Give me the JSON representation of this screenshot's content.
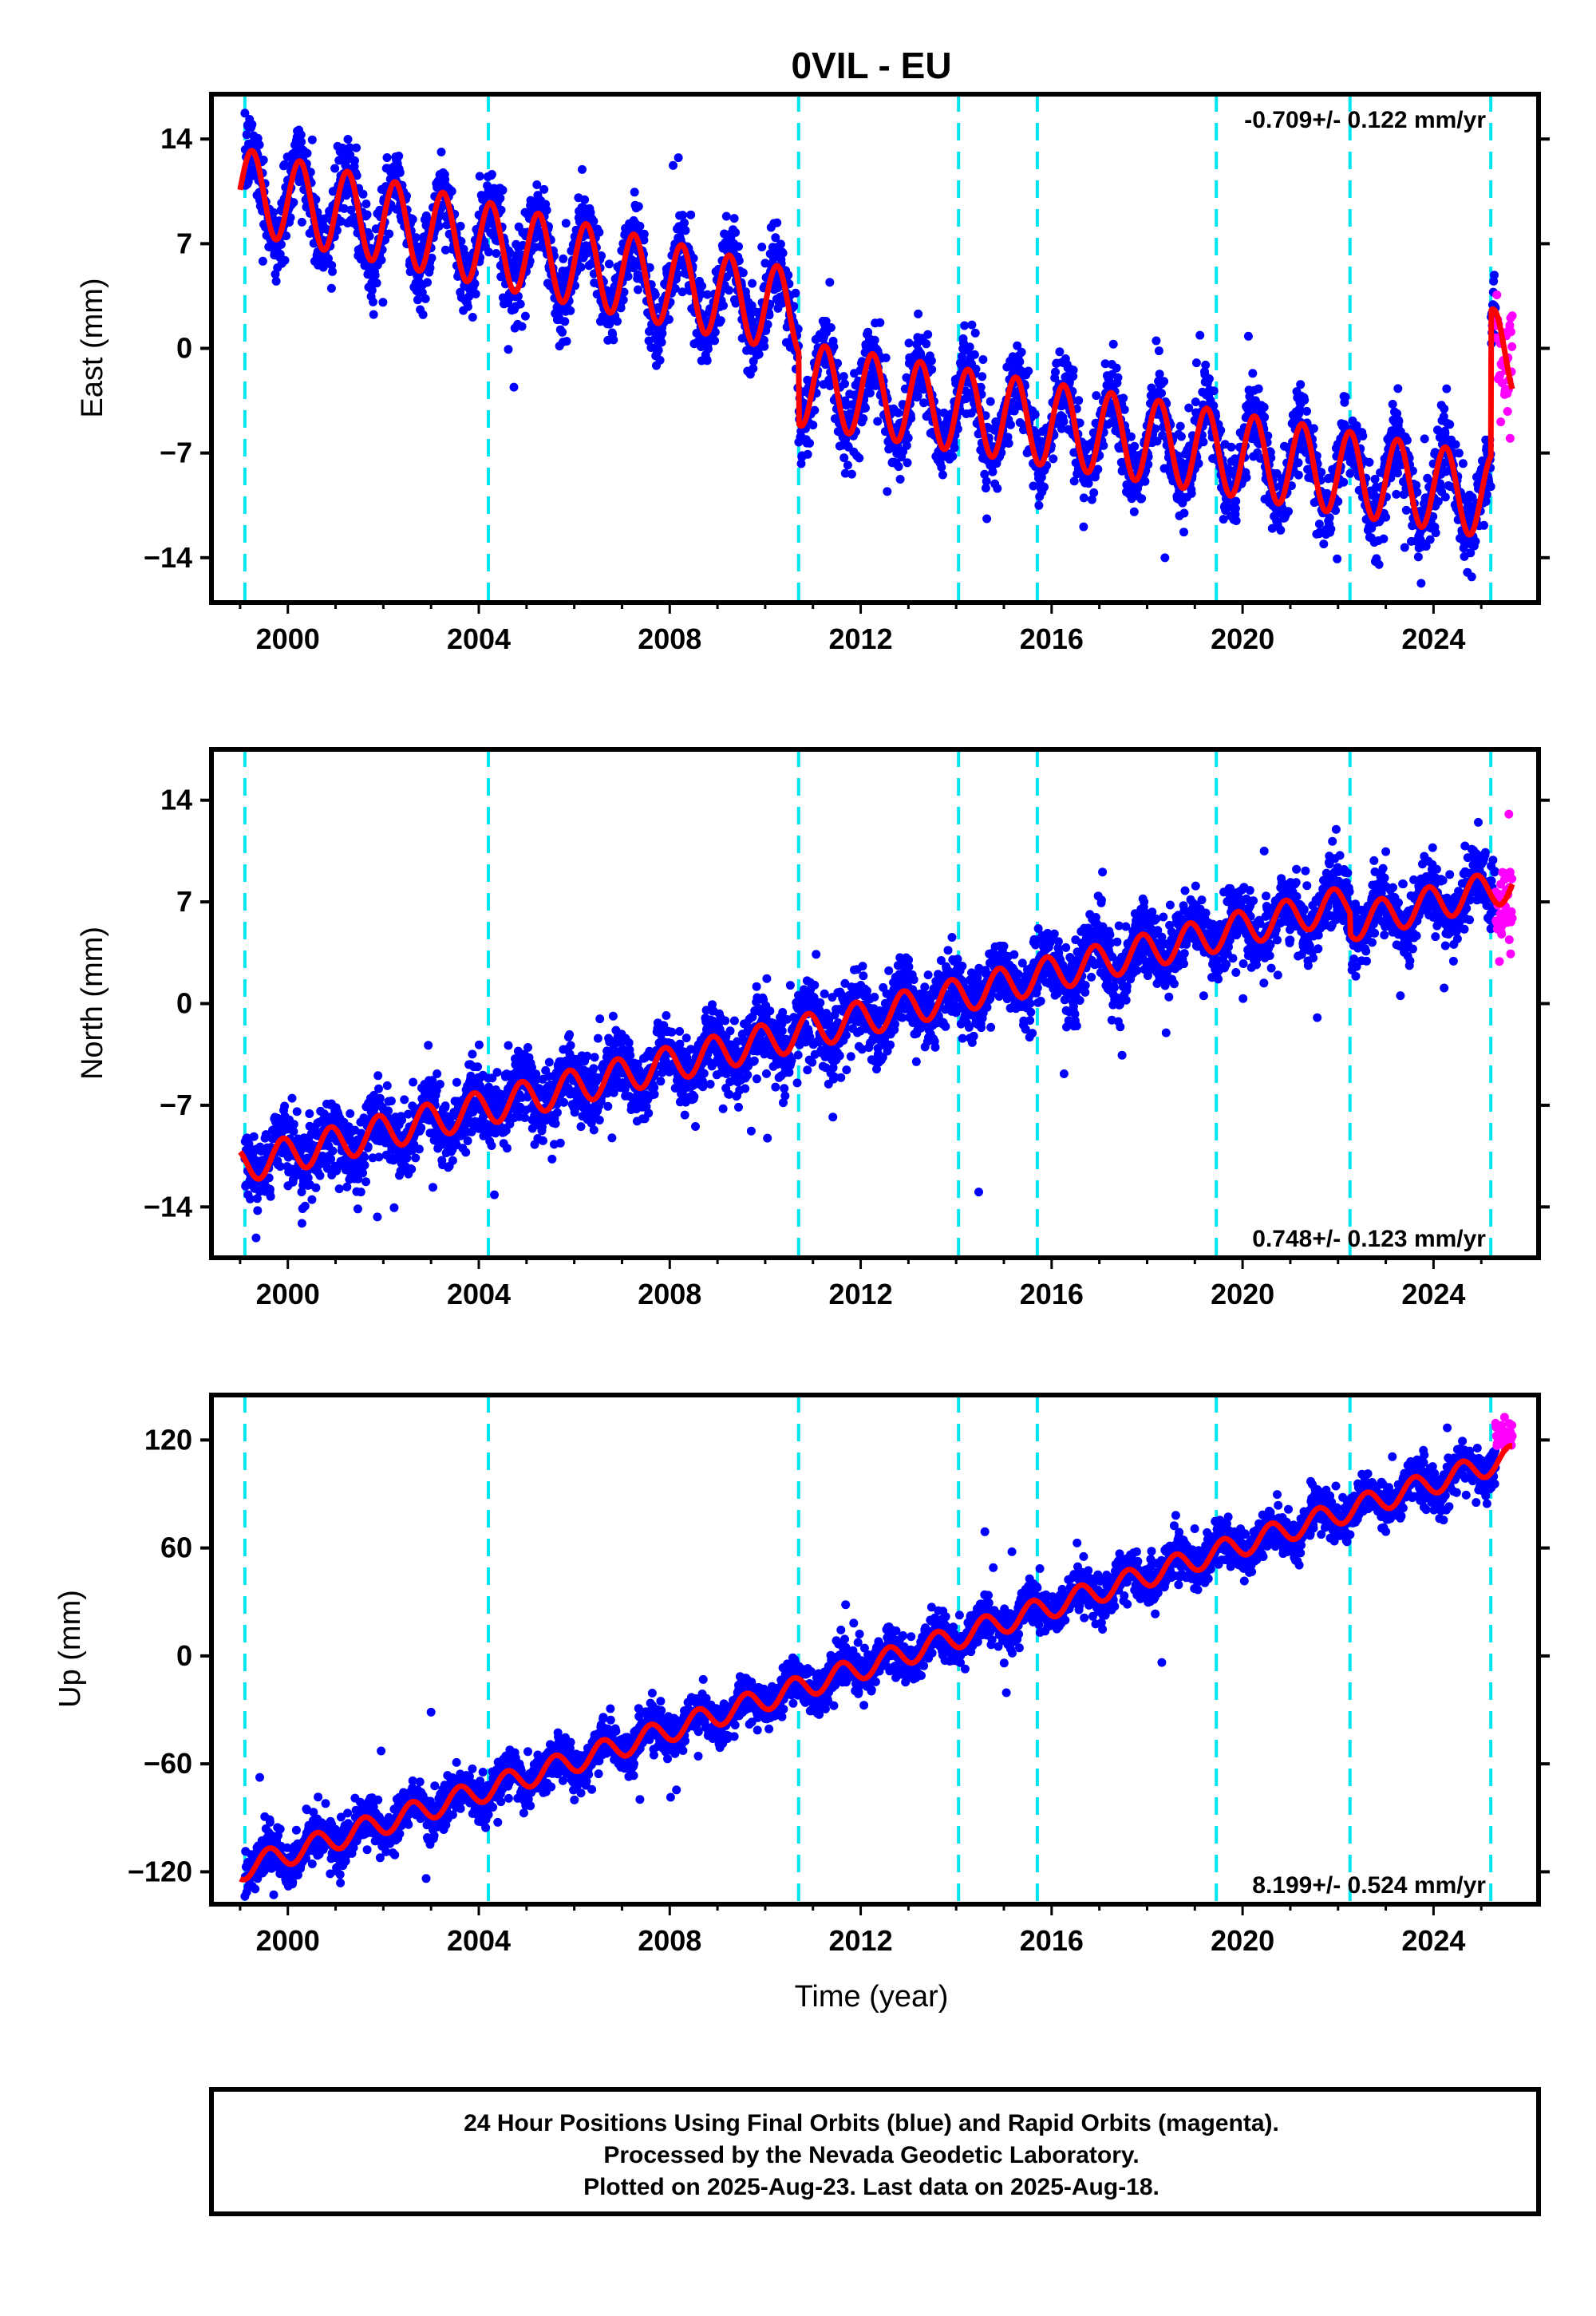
{
  "title": "0VIL - EU",
  "xlabel": "Time (year)",
  "footer": {
    "line1": "24 Hour Positions Using Final Orbits (blue) and Rapid Orbits (magenta).",
    "line2": "Processed by the Nevada Geodetic Laboratory.",
    "line3": "Plotted on 2025-Aug-23. Last data on 2025-Aug-18."
  },
  "colors": {
    "final_orbits": "#0000ff",
    "rapid_orbits": "#ff00ff",
    "model_fit": "#ff0000",
    "equipment_change": "#00e5ee"
  },
  "chart_data": [
    {
      "type": "scatter",
      "ylabel": "East (mm)",
      "rate_label": "-0.709+/- 0.122 mm/yr",
      "rate_position": "top-right",
      "xlim": [
        1998.4,
        2026.2
      ],
      "ylim": [
        -17,
        17
      ],
      "xticks": [
        2000,
        2004,
        2008,
        2012,
        2016,
        2020,
        2024
      ],
      "yticks": [
        14,
        7,
        0,
        -7,
        -14
      ],
      "ytick_labels": [
        "14",
        "7",
        "0",
        "−7",
        "−14"
      ],
      "grid": false,
      "equipment_changes": [
        1999.1,
        2004.2,
        2010.7,
        2014.05,
        2015.7,
        2019.45,
        2022.25,
        2025.2
      ],
      "series": [
        {
          "kind": "model",
          "linear": [
            {
              "from": 1999.0,
              "to": 2010.7,
              "intercept_at_2005": 6.4,
              "slope": -0.7
            },
            {
              "from": 2010.7,
              "to": 2025.2,
              "intercept_at_2005": 0.6,
              "slope": -0.52
            },
            {
              "from": 2025.2,
              "to": 2025.65,
              "intercept_at_2005": 14.0,
              "slope": -0.7
            }
          ],
          "annual_amplitude": 2.8,
          "annual_phase_year": 0.25
        },
        {
          "kind": "final",
          "scatter_sd": 1.6,
          "end": 2025.2
        },
        {
          "kind": "rapid",
          "x_range": [
            2025.3,
            2025.65
          ],
          "y_range": [
            -6,
            5
          ]
        }
      ]
    },
    {
      "type": "scatter",
      "ylabel": "North (mm)",
      "rate_label": "0.748+/- 0.123 mm/yr",
      "rate_position": "bottom-right",
      "xlim": [
        1998.4,
        2026.2
      ],
      "ylim": [
        -17.5,
        17.5
      ],
      "xticks": [
        2000,
        2004,
        2008,
        2012,
        2016,
        2020,
        2024
      ],
      "yticks": [
        14,
        7,
        0,
        -7,
        -14
      ],
      "ytick_labels": [
        "14",
        "7",
        "0",
        "−7",
        "−14"
      ],
      "grid": false,
      "equipment_changes": [
        1999.1,
        2004.2,
        2010.7,
        2014.05,
        2015.7,
        2019.45,
        2022.25,
        2025.2
      ],
      "series": [
        {
          "kind": "model",
          "linear": [
            {
              "from": 1999.0,
              "to": 2022.25,
              "intercept_at_2005": -6.5,
              "slope": 0.78
            },
            {
              "from": 2022.25,
              "to": 2025.65,
              "intercept_at_2005": -8.3,
              "slope": 0.8
            }
          ],
          "annual_amplitude": 1.2,
          "annual_phase_year": 0.9
        },
        {
          "kind": "final",
          "scatter_sd": 1.5,
          "end": 2025.2
        },
        {
          "kind": "rapid",
          "x_range": [
            2025.3,
            2025.65
          ],
          "y_range": [
            3,
            11
          ]
        }
      ]
    },
    {
      "type": "scatter",
      "ylabel": "Up (mm)",
      "rate_label": "8.199+/- 0.524 mm/yr",
      "rate_position": "bottom-right",
      "xlim": [
        1998.4,
        2026.2
      ],
      "ylim": [
        -138,
        145
      ],
      "xticks": [
        2000,
        2004,
        2008,
        2012,
        2016,
        2020,
        2024
      ],
      "yticks": [
        120,
        60,
        0,
        -60,
        -120
      ],
      "ytick_labels": [
        "120",
        "60",
        "0",
        "−60",
        "−120"
      ],
      "grid": false,
      "equipment_changes": [
        1999.1,
        2004.2,
        2010.7,
        2014.05,
        2015.7,
        2019.45,
        2022.25,
        2025.2
      ],
      "series": [
        {
          "kind": "model",
          "linear": [
            {
              "from": 1999.0,
              "to": 2025.65,
              "intercept_at_2005": -67,
              "slope": 8.6
            }
          ],
          "annual_amplitude": 6.5,
          "annual_phase_year": 0.6
        },
        {
          "kind": "final",
          "scatter_sd": 7.5,
          "end": 2025.2
        },
        {
          "kind": "rapid",
          "x_range": [
            2025.3,
            2025.65
          ],
          "y_range": [
            110,
            132
          ]
        }
      ]
    }
  ]
}
